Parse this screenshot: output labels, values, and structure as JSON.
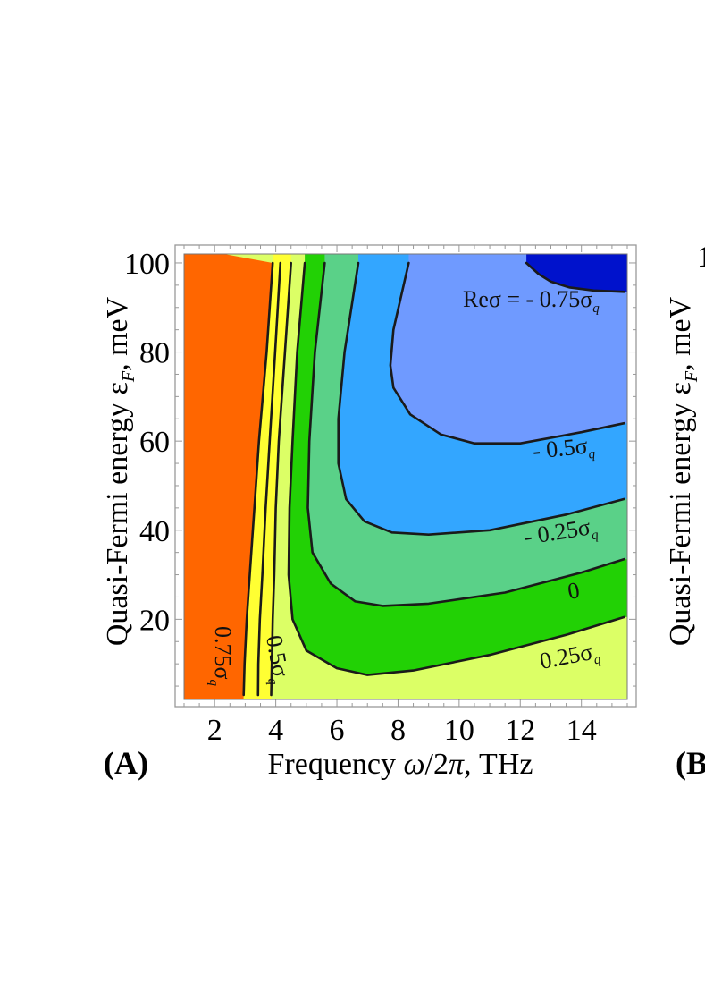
{
  "chart_data": [
    {
      "panel": "(A)",
      "type": "heatmap",
      "title": "",
      "xlabel": "Frequency ω/2π, THz",
      "ylabel": "Quasi-Fermi energy ε_F, meV",
      "xlim": [
        1,
        15.5
      ],
      "ylim": [
        2,
        102
      ],
      "xticks": [
        2,
        4,
        6,
        8,
        10,
        12,
        14
      ],
      "yticks": [
        20,
        40,
        60,
        80,
        100
      ],
      "grid": false,
      "legend": "none",
      "levels": [
        {
          "label": "0.75σq",
          "value": 0.75,
          "color": "#ff6600"
        },
        {
          "label": "0.5σq",
          "value": 0.5,
          "color": "#ffff33"
        },
        {
          "label": "0.25σq",
          "value": 0.25,
          "color": "#dcff66"
        },
        {
          "label": "0",
          "value": 0,
          "color": "#22d105"
        },
        {
          "label": "- 0.25σq",
          "value": -0.25,
          "color": "#5ad188"
        },
        {
          "label": "- 0.5σq",
          "value": -0.5,
          "color": "#33a6ff"
        },
        {
          "label": "Reσ = - 0.75σq",
          "value": -0.75,
          "color": "#6f9aff"
        }
      ],
      "deepest_region_color": "#0012cc",
      "contours": [
        {
          "level": "0.75σq",
          "x": [
            3.9,
            3.7,
            3.45,
            3.3,
            3.15,
            3.05,
            2.98,
            2.95
          ],
          "y": [
            100,
            80,
            60,
            45,
            30,
            20,
            10,
            3
          ]
        },
        {
          "level": "0.5σq (a)",
          "x": [
            4.15,
            3.98,
            3.8,
            3.67,
            3.56,
            3.48,
            3.43,
            3.42
          ],
          "y": [
            100,
            80,
            60,
            45,
            30,
            20,
            10,
            3
          ]
        },
        {
          "level": "0.5σq (b)",
          "x": [
            4.5,
            4.3,
            4.1,
            4.0,
            3.95,
            3.9,
            3.87,
            3.85
          ],
          "y": [
            100,
            80,
            60,
            45,
            30,
            20,
            10,
            3
          ]
        },
        {
          "level": "0.25σq",
          "x": [
            4.95,
            4.7,
            4.55,
            4.45,
            4.42,
            4.55,
            5.0,
            6.0,
            7.0,
            8.5,
            11.0,
            13.5,
            15.4
          ],
          "y": [
            100,
            80,
            60,
            45,
            30,
            20,
            13,
            9,
            7.5,
            8.5,
            12,
            16.5,
            20.5
          ]
        },
        {
          "level": "0",
          "x": [
            5.6,
            5.28,
            5.1,
            5.05,
            5.2,
            5.8,
            6.6,
            7.5,
            9.0,
            11.5,
            14.0,
            15.4
          ],
          "y": [
            100,
            80,
            60,
            45,
            35,
            28,
            24,
            23,
            23.5,
            26,
            30.5,
            33.5
          ]
        },
        {
          "level": "- 0.25σq",
          "x": [
            6.7,
            6.25,
            6.05,
            6.05,
            6.3,
            6.9,
            7.8,
            9.0,
            11.0,
            13.5,
            15.4
          ],
          "y": [
            100,
            80,
            65,
            55,
            47,
            42,
            39.5,
            39,
            40,
            43.5,
            47
          ]
        },
        {
          "level": "- 0.5σq",
          "x": [
            8.35,
            7.85,
            7.75,
            7.85,
            8.4,
            9.4,
            10.5,
            12.0,
            14.0,
            15.4
          ],
          "y": [
            100,
            85,
            77,
            72,
            66,
            61.5,
            59.5,
            59.5,
            62,
            64
          ]
        },
        {
          "level": "- 0.75σq",
          "x": [
            12.2,
            12.6,
            13.0,
            13.6,
            14.4,
            15.4
          ],
          "y": [
            100,
            97.5,
            95.8,
            94.5,
            93.8,
            93.5
          ]
        }
      ]
    }
  ],
  "partial_panel": {
    "label": "(B)",
    "ytick_partial": "1",
    "ylabel": "Quasi-Fermi energy ε_F, meV"
  }
}
